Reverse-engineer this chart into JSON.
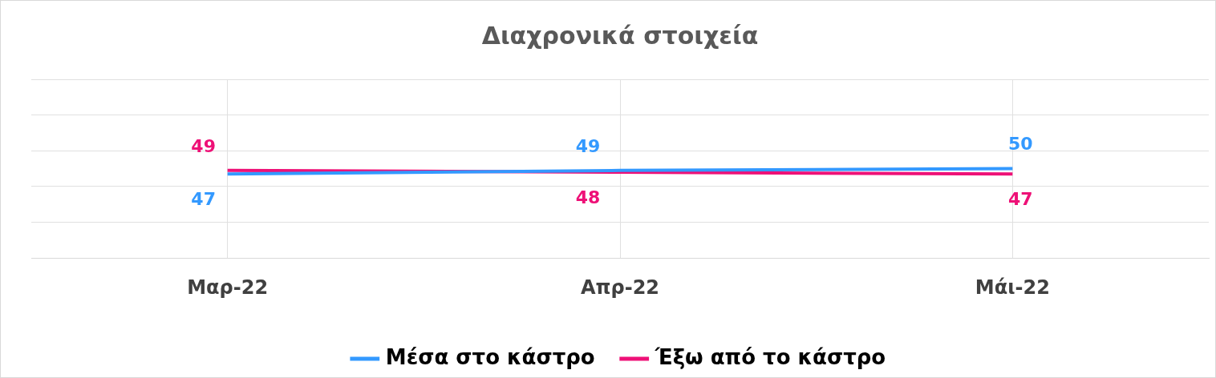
{
  "chart_data": {
    "type": "line",
    "title": "Διαχρονικά στοιχεία",
    "categories": [
      "Μαρ-22",
      "Απρ-22",
      "Μάι-22"
    ],
    "series": [
      {
        "name": "Μέσα στο κάστρο",
        "color": "#3399ff",
        "values": [
          47,
          49,
          50
        ]
      },
      {
        "name": "Έξω από το κάστρο",
        "color": "#ee1177",
        "values": [
          49,
          48,
          47
        ]
      }
    ],
    "ylim": [
      0,
      100
    ],
    "yticks": [
      {
        "value": 0,
        "label": null
      },
      {
        "value": 20,
        "label": null
      },
      {
        "value": 40,
        "label": null
      },
      {
        "value": 60,
        "label": null
      },
      {
        "value": 80,
        "label": null
      },
      {
        "value": 100,
        "label": null
      }
    ],
    "tick_labels": "x",
    "grid": true,
    "legend": "bottom",
    "marker": "none",
    "line_style": "solid",
    "data_labels": true
  }
}
